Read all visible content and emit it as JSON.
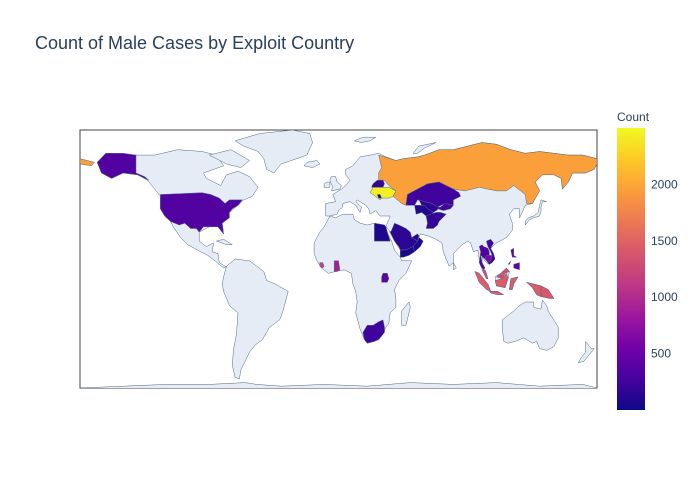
{
  "title": "Count of Male Cases by Exploit Country",
  "chart_data": {
    "type": "choropleth",
    "projection": "equirectangular",
    "colorscale": "plasma",
    "colorbar": {
      "title": "Count",
      "range": [
        0,
        2500
      ],
      "ticks": [
        {
          "label": "500",
          "value": 500
        },
        {
          "label": "1000",
          "value": 1000
        },
        {
          "label": "1500",
          "value": 1500
        },
        {
          "label": "2000",
          "value": 2000
        }
      ]
    },
    "colors": {
      "land": "#e5ecf6",
      "coast": "#506784",
      "plot_border": "#444444",
      "text": "#2a3f5f"
    },
    "regions": [
      {
        "name": "Russia",
        "value": 1950
      },
      {
        "name": "Ukraine",
        "value": 2450
      },
      {
        "name": "Belarus",
        "value": 200
      },
      {
        "name": "Moldova",
        "value": 50
      },
      {
        "name": "Kazakhstan",
        "value": 250
      },
      {
        "name": "Uzbekistan",
        "value": 150
      },
      {
        "name": "Kyrgyzstan",
        "value": 300
      },
      {
        "name": "Turkmenistan",
        "value": 100
      },
      {
        "name": "Afghanistan",
        "value": 200
      },
      {
        "name": "United States",
        "value": 350
      },
      {
        "name": "Egypt",
        "value": 80
      },
      {
        "name": "Saudi Arabia",
        "value": 150
      },
      {
        "name": "United Arab Emirates",
        "value": 120
      },
      {
        "name": "Yemen",
        "value": 60
      },
      {
        "name": "Oman",
        "value": 90
      },
      {
        "name": "Sierra Leone",
        "value": 1200
      },
      {
        "name": "Ghana",
        "value": 900
      },
      {
        "name": "Uganda",
        "value": 400
      },
      {
        "name": "South Africa",
        "value": 250
      },
      {
        "name": "Thailand",
        "value": 350
      },
      {
        "name": "Cambodia",
        "value": 600
      },
      {
        "name": "Vietnam",
        "value": 250
      },
      {
        "name": "Philippines",
        "value": 450
      },
      {
        "name": "Indonesia",
        "value": 1450
      },
      {
        "name": "Malaysia",
        "value": 1350
      },
      {
        "name": "Papua New Guinea",
        "value": 1400
      }
    ]
  }
}
